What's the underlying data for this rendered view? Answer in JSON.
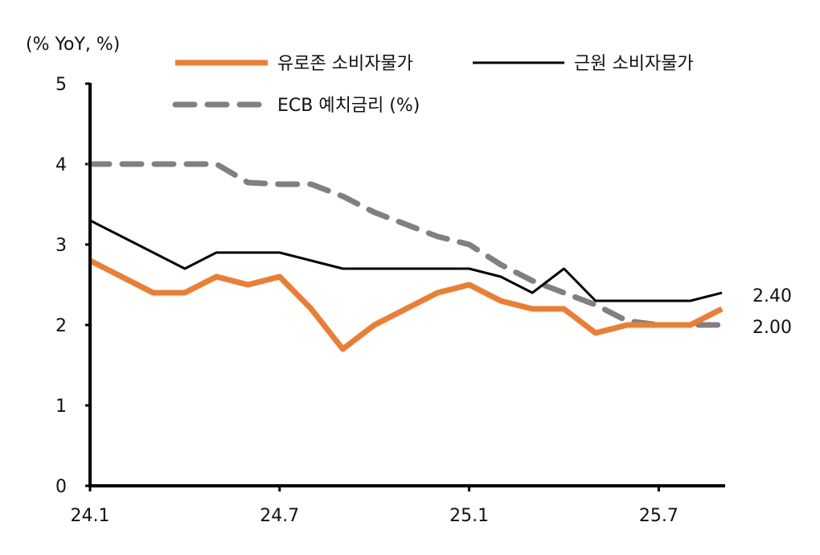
{
  "chart_data": {
    "type": "line",
    "unit_label": "(% YoY, %)",
    "x": [
      "24.1",
      "24.2",
      "24.3",
      "24.4",
      "24.5",
      "24.6",
      "24.7",
      "24.8",
      "24.9",
      "24.10",
      "24.11",
      "24.12",
      "25.1",
      "25.2",
      "25.3",
      "25.4",
      "25.5",
      "25.6",
      "25.7",
      "25.8",
      "25.9"
    ],
    "x_tick_labels": [
      "24.1",
      "24.7",
      "25.1",
      "25.7"
    ],
    "y_tick_labels": [
      "0",
      "1",
      "2",
      "3",
      "4",
      "5"
    ],
    "ylim": [
      0,
      5
    ],
    "grid": false,
    "legend_placement": "top",
    "series": [
      {
        "name": "유로존 소비자물가",
        "color": "#ED7D31",
        "style": "solid-thick",
        "values": [
          2.8,
          2.6,
          2.4,
          2.4,
          2.6,
          2.5,
          2.6,
          2.2,
          1.7,
          2.0,
          2.2,
          2.4,
          2.5,
          2.3,
          2.2,
          2.2,
          1.9,
          2.0,
          2.0,
          2.0,
          2.2
        ]
      },
      {
        "name": "근원 소비자물가",
        "color": "#000000",
        "style": "solid-thin",
        "values": [
          3.3,
          3.1,
          2.9,
          2.7,
          2.9,
          2.9,
          2.9,
          2.8,
          2.7,
          2.7,
          2.7,
          2.7,
          2.7,
          2.6,
          2.4,
          2.7,
          2.3,
          2.3,
          2.3,
          2.3,
          2.4
        ]
      },
      {
        "name": "ECB 예치금리 (%)",
        "color": "#808080",
        "style": "dashed",
        "values": [
          4.0,
          4.0,
          4.0,
          4.0,
          4.0,
          3.77,
          3.75,
          3.75,
          3.6,
          3.4,
          3.25,
          3.1,
          3.0,
          2.75,
          2.55,
          2.4,
          2.25,
          2.05,
          2.0,
          2.0,
          2.0
        ]
      }
    ],
    "annotations": [
      "2.40",
      "2.00"
    ]
  }
}
